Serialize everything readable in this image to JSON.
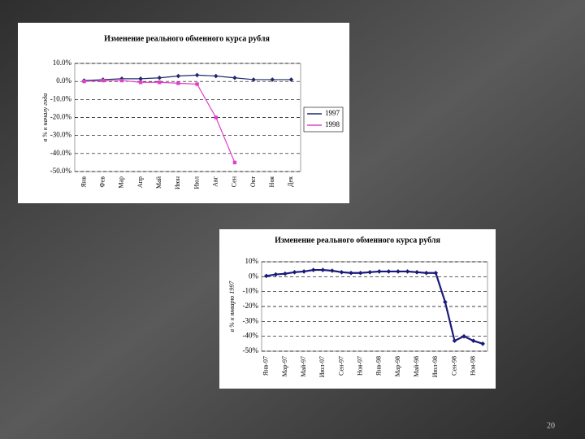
{
  "chart_data": [
    {
      "type": "line",
      "title": "Изменение реального обменного курса рубля",
      "y_label": "в % к началу года",
      "categories": [
        "Янв",
        "Фев",
        "Мар",
        "Апр",
        "Май",
        "Июн",
        "Июл",
        "Авг",
        "Сен",
        "Окт",
        "Ноя",
        "Дек"
      ],
      "series": [
        {
          "name": "1997",
          "color": "#1f2a6e",
          "values": [
            0.5,
            1,
            1.5,
            1.5,
            2,
            3,
            3.5,
            3,
            2,
            1,
            1,
            1
          ]
        },
        {
          "name": "1998",
          "color": "#e040c8",
          "values": [
            0,
            0.5,
            0.5,
            -0.5,
            -0.5,
            -1,
            -1.5,
            -20,
            -45,
            null,
            null,
            null
          ]
        }
      ],
      "ylim": [
        -50,
        10
      ],
      "yticks": [
        {
          "value": 10,
          "label": "10.0%"
        },
        {
          "value": 0,
          "label": "0.0%"
        },
        {
          "value": -10,
          "label": "-10.0%"
        },
        {
          "value": -20,
          "label": "-20.0%"
        },
        {
          "value": -30,
          "label": "-30.0%"
        },
        {
          "value": -40,
          "label": "-40.0%"
        },
        {
          "value": -50,
          "label": "-50.0%"
        }
      ],
      "grid": true,
      "legend": "right"
    },
    {
      "type": "line",
      "title": "Изменение реального обменного курса рубля",
      "y_label": "в % к январю 1997",
      "categories": [
        "Янв-97",
        null,
        "Мар-97",
        null,
        "Май-97",
        null,
        "Июл-97",
        null,
        "Сен-97",
        null,
        "Ноя-97",
        null,
        "Янв-98",
        null,
        "Мар-98",
        null,
        "Май-98",
        null,
        "Июл-98",
        null,
        "Сен-98",
        null,
        "Ноя-98",
        null
      ],
      "series": [
        {
          "color": "#1a1a7a",
          "values": [
            0.5,
            1.5,
            2,
            3,
            3.5,
            4.5,
            4.5,
            4,
            3,
            2.5,
            2.5,
            3,
            3.5,
            3.5,
            3.5,
            3.5,
            3,
            2.5,
            2.5,
            -17,
            -43,
            -40,
            -43,
            -45
          ]
        }
      ],
      "ylim": [
        -50,
        10
      ],
      "yticks": [
        {
          "value": 10,
          "label": "10%"
        },
        {
          "value": 0,
          "label": "0%"
        },
        {
          "value": -10,
          "label": "-10%"
        },
        {
          "value": -20,
          "label": "-20%"
        },
        {
          "value": -30,
          "label": "-30%"
        },
        {
          "value": -40,
          "label": "-40%"
        },
        {
          "value": -50,
          "label": "-50%"
        }
      ],
      "grid": true
    }
  ],
  "page_number": "20"
}
